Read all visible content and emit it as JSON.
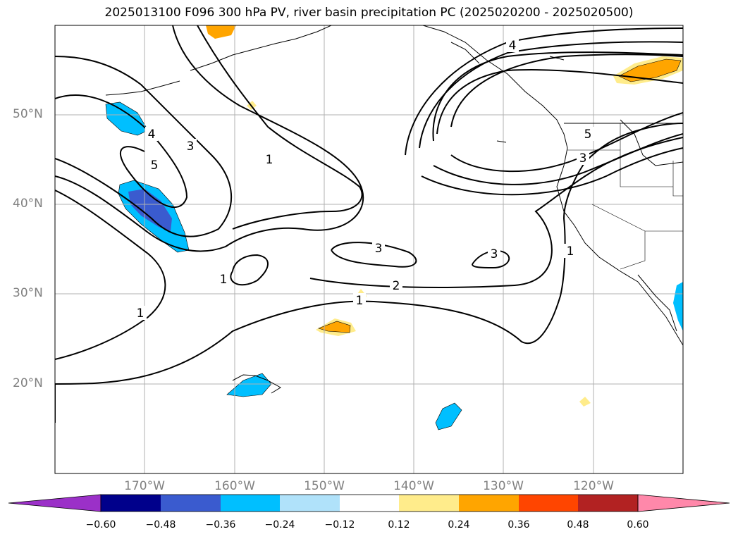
{
  "title": "2025013100 F096 300 hPa PV, river basin precipitation PC (2025020200 - 2025020500)",
  "map": {
    "projection": "equirectangular",
    "lon_range": [
      -180,
      -110
    ],
    "lat_range": [
      10,
      60
    ],
    "lat_labels": [
      "50°N",
      "40°N",
      "30°N",
      "20°N"
    ],
    "lon_labels": [
      "170°W",
      "160°W",
      "150°W",
      "140°W",
      "130°W",
      "120°W"
    ],
    "grid": true,
    "contour_labels": [
      "4",
      "4",
      "3",
      "5",
      "1",
      "5",
      "3",
      "3",
      "3",
      "2",
      "1",
      "1",
      "1",
      "1"
    ]
  },
  "colorbar": {
    "tick_labels": [
      "−0.60",
      "−0.48",
      "−0.36",
      "−0.24",
      "−0.12",
      "0.12",
      "0.24",
      "0.36",
      "0.48",
      "0.60"
    ],
    "colors": [
      "#9b30c8",
      "#00008b",
      "#3a5bcf",
      "#00bfff",
      "#b0e2fa",
      "#ffffff",
      "#ffec8b",
      "#ffa500",
      "#ff4500",
      "#b22222",
      "#ff88aa"
    ],
    "extend": "both"
  }
}
